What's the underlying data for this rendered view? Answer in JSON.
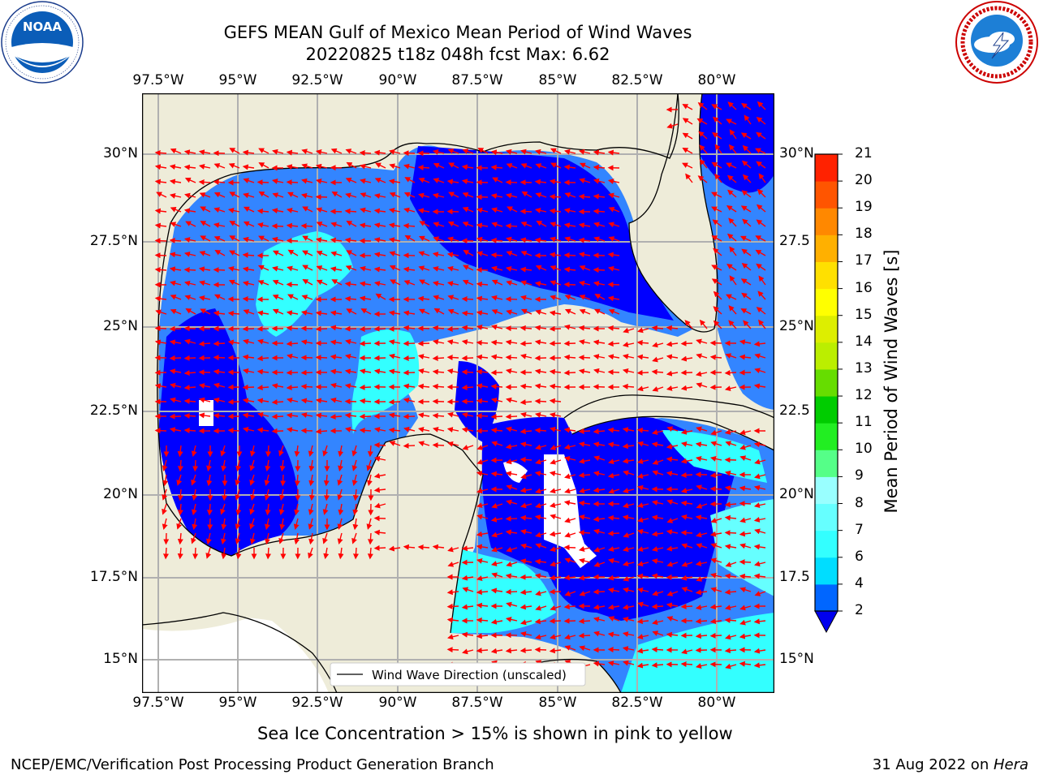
{
  "header": {
    "title_line1": "GEFS MEAN Gulf of Mexico Mean Period of Wind Waves",
    "title_line2": "20220825 t18z 048h fcst   Max: 6.62"
  },
  "logos": {
    "left": {
      "name": "NOAA",
      "ring_text": "NATIONAL OCEANIC AND ATMOSPHERIC ADMINISTRATION · U.S. DEPARTMENT OF COMMERCE",
      "center_text": "NOAA"
    },
    "right": {
      "name": "National Weather Service",
      "ring_text": "NATIONAL WEATHER SERVICE"
    }
  },
  "map": {
    "lon_labels": [
      "97.5°W",
      "95°W",
      "92.5°W",
      "90°W",
      "87.5°W",
      "85°W",
      "82.5°W",
      "80°W"
    ],
    "lat_labels": [
      "30°N",
      "27.5°N",
      "25°N",
      "22.5°N",
      "20°N",
      "17.5°N",
      "15°N"
    ],
    "lat_labels_right": [
      "30°N",
      "27.5",
      "25°N",
      "22.5",
      "20°N",
      "17.5",
      "15°N"
    ],
    "legend_label": "Wind Wave Direction (unscaled)",
    "colors": {
      "land": "#eeecd9",
      "ocean_low": "#3385ff",
      "ocean_vlow": "#0000ff",
      "ocean_mid": "#00ffff",
      "ocean_mid2": "#4dffff",
      "arrow": "#ff0000",
      "grid": "#b0b0b0"
    }
  },
  "colorbar": {
    "label": "Mean Period of Wind Waves [s]",
    "ticks": [
      "2",
      "4",
      "6",
      "7",
      "8",
      "9",
      "10",
      "11",
      "12",
      "13",
      "14",
      "15",
      "16",
      "17",
      "18",
      "19",
      "20",
      "21"
    ],
    "colors": [
      "#0066ff",
      "#00ddff",
      "#33ffff",
      "#66ffff",
      "#99ffff",
      "#55ff88",
      "#22ee22",
      "#00cc00",
      "#66dd00",
      "#bbee00",
      "#ddee00",
      "#ffff00",
      "#ffe000",
      "#ffb000",
      "#ff8800",
      "#ff5500",
      "#ff2200"
    ]
  },
  "subtitle": "Sea Ice Concentration > 15% is shown in pink to yellow",
  "footer": {
    "left": "NCEP/EMC/Verification Post Processing Product Generation Branch",
    "right_date": "31 Aug 2022 on ",
    "right_host": "Hera"
  }
}
